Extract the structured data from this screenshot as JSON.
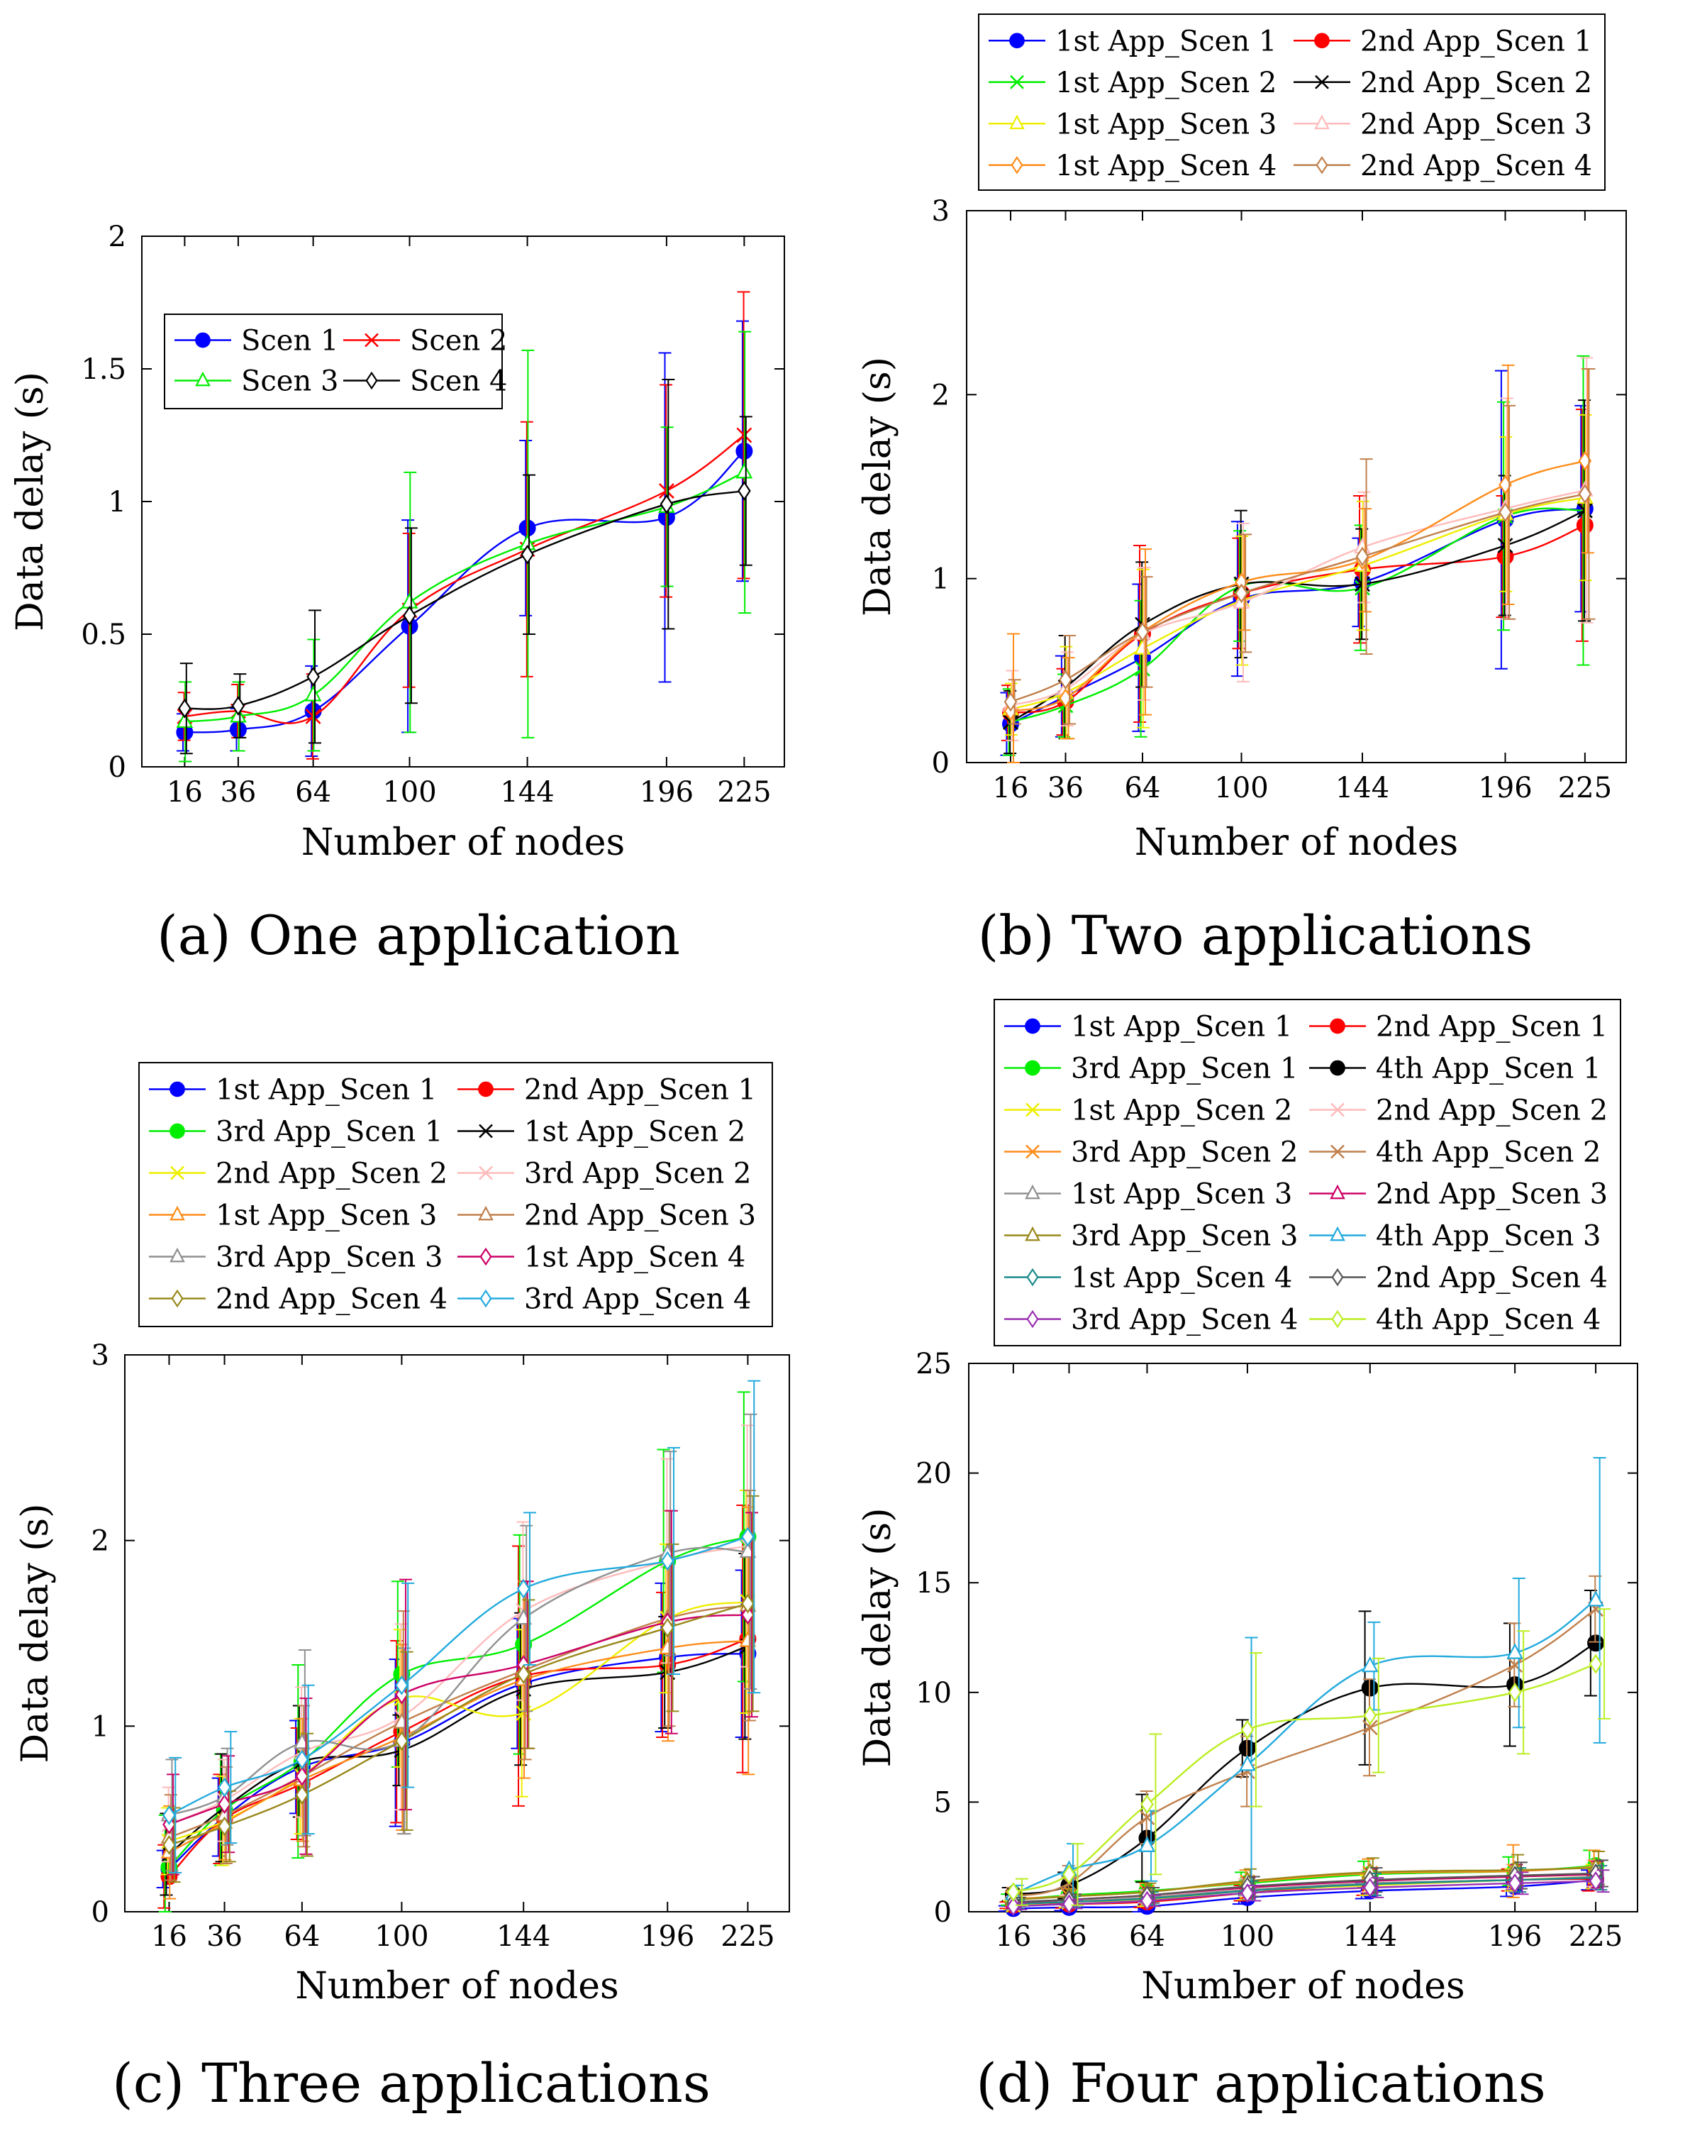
{
  "figure": {
    "captions": [
      "(a) One application",
      "(b) Two applications",
      "(c) Three applications",
      "(d) Four applications"
    ]
  },
  "chart_data": [
    {
      "type": "line",
      "title": "(a) One application",
      "xlabel": "Number of nodes",
      "ylabel": "Data delay (s)",
      "x": [
        16,
        36,
        64,
        100,
        144,
        196,
        225
      ],
      "xlim": [
        0,
        240
      ],
      "ylim": [
        0,
        2
      ],
      "yticks": [
        0,
        0.5,
        1,
        1.5,
        2
      ],
      "ytick_labels": [
        "0",
        "0.5",
        "1",
        "1.5",
        "2"
      ],
      "legend_columns": 2,
      "legend_position": "upper-left-inside",
      "series": [
        {
          "name": "Scen 1",
          "color": "#0000ff",
          "marker": "dot",
          "values": [
            0.13,
            0.14,
            0.21,
            0.53,
            0.9,
            0.94,
            1.19
          ],
          "err": [
            0.07,
            0.08,
            0.17,
            0.4,
            0.33,
            0.62,
            0.49
          ]
        },
        {
          "name": "Scen 2",
          "color": "#ff0000",
          "marker": "x",
          "values": [
            0.19,
            0.21,
            0.19,
            0.59,
            0.82,
            1.04,
            1.25
          ],
          "err": [
            0.09,
            0.1,
            0.16,
            0.29,
            0.48,
            0.4,
            0.54
          ]
        },
        {
          "name": "Scen 3",
          "color": "#00ee00",
          "marker": "triangle",
          "values": [
            0.17,
            0.19,
            0.27,
            0.62,
            0.84,
            0.98,
            1.11
          ],
          "err": [
            0.15,
            0.13,
            0.21,
            0.49,
            0.73,
            0.3,
            0.53
          ]
        },
        {
          "name": "Scen 4",
          "color": "#000000",
          "marker": "diamond",
          "values": [
            0.22,
            0.23,
            0.34,
            0.57,
            0.8,
            0.99,
            1.04
          ],
          "err": [
            0.17,
            0.12,
            0.25,
            0.33,
            0.3,
            0.47,
            0.28
          ]
        }
      ]
    },
    {
      "type": "line",
      "title": "(b) Two applications",
      "xlabel": "Number of nodes",
      "ylabel": "Data delay (s)",
      "x": [
        16,
        36,
        64,
        100,
        144,
        196,
        225
      ],
      "xlim": [
        0,
        240
      ],
      "ylim": [
        0,
        3
      ],
      "yticks": [
        0,
        1,
        2,
        3
      ],
      "ytick_labels": [
        "0",
        "1",
        "2",
        "3"
      ],
      "legend_columns": 2,
      "legend_position": "above",
      "series": [
        {
          "name": "1st App_Scen 1",
          "color": "#0000ff",
          "marker": "dot",
          "values": [
            0.21,
            0.36,
            0.57,
            0.89,
            0.98,
            1.32,
            1.38
          ],
          "err": [
            0.17,
            0.22,
            0.4,
            0.42,
            0.24,
            0.81,
            0.56
          ]
        },
        {
          "name": "2nd App_Scen 1",
          "color": "#ff0000",
          "marker": "dot",
          "values": [
            0.27,
            0.33,
            0.7,
            0.92,
            1.05,
            1.12,
            1.29
          ],
          "err": [
            0.15,
            0.18,
            0.48,
            0.3,
            0.4,
            0.33,
            0.63
          ]
        },
        {
          "name": "1st App_Scen 2",
          "color": "#00ee00",
          "marker": "x",
          "values": [
            0.22,
            0.31,
            0.51,
            0.96,
            0.95,
            1.34,
            1.37
          ],
          "err": [
            0.18,
            0.17,
            0.37,
            0.3,
            0.34,
            0.62,
            0.84
          ]
        },
        {
          "name": "2nd App_Scen 2",
          "color": "#000000",
          "marker": "x",
          "values": [
            0.22,
            0.41,
            0.75,
            0.97,
            0.97,
            1.18,
            1.37
          ],
          "err": [
            0.17,
            0.28,
            0.34,
            0.4,
            0.3,
            0.38,
            0.6
          ]
        },
        {
          "name": "1st App_Scen 3",
          "color": "#eeee00",
          "marker": "triangle",
          "values": [
            0.29,
            0.38,
            0.62,
            0.88,
            1.07,
            1.35,
            1.44
          ],
          "err": [
            0.14,
            0.25,
            0.43,
            0.35,
            0.35,
            0.42,
            0.45
          ]
        },
        {
          "name": "2nd App_Scen 3",
          "color": "#ffbbbb",
          "marker": "triangle",
          "values": [
            0.31,
            0.4,
            0.7,
            0.87,
            1.17,
            1.38,
            1.48
          ],
          "err": [
            0.19,
            0.2,
            0.36,
            0.43,
            0.3,
            0.6,
            0.72
          ]
        },
        {
          "name": "1st App_Scen 4",
          "color": "#ff8c1a",
          "marker": "diamond",
          "values": [
            0.28,
            0.35,
            0.71,
            0.98,
            1.1,
            1.51,
            1.64
          ],
          "err": [
            0.42,
            0.22,
            0.45,
            0.26,
            0.28,
            0.65,
            0.5
          ]
        },
        {
          "name": "2nd App_Scen 4",
          "color": "#c0804d",
          "marker": "diamond",
          "values": [
            0.33,
            0.45,
            0.71,
            0.92,
            1.12,
            1.36,
            1.46
          ],
          "err": [
            0.12,
            0.24,
            0.3,
            0.32,
            0.53,
            0.58,
            0.68
          ]
        }
      ]
    },
    {
      "type": "line",
      "title": "(c) Three applications",
      "xlabel": "Number of nodes",
      "ylabel": "Data delay (s)",
      "x": [
        16,
        36,
        64,
        100,
        144,
        196,
        225
      ],
      "xlim": [
        0,
        240
      ],
      "ylim": [
        0,
        3
      ],
      "yticks": [
        0,
        1,
        2,
        3
      ],
      "ytick_labels": [
        "0",
        "1",
        "2",
        "3"
      ],
      "legend_columns": 2,
      "legend_position": "above",
      "series": [
        {
          "name": "1st App_Scen 1",
          "color": "#0000ff",
          "marker": "dot",
          "values": [
            0.23,
            0.51,
            0.78,
            0.91,
            1.23,
            1.37,
            1.39
          ],
          "err": [
            0.1,
            0.21,
            0.25,
            0.45,
            0.35,
            0.4,
            0.45
          ]
        },
        {
          "name": "2nd App_Scen 1",
          "color": "#ff0000",
          "marker": "dot",
          "values": [
            0.19,
            0.5,
            0.69,
            0.97,
            1.27,
            1.33,
            1.47
          ],
          "err": [
            0.17,
            0.24,
            0.3,
            0.49,
            0.7,
            0.39,
            0.72
          ]
        },
        {
          "name": "3rd App_Scen 1",
          "color": "#00ee00",
          "marker": "dot",
          "values": [
            0.24,
            0.55,
            0.81,
            1.28,
            1.44,
            1.89,
            2.02
          ],
          "err": [
            0.28,
            0.3,
            0.52,
            0.5,
            0.59,
            0.6,
            0.78
          ]
        },
        {
          "name": "1st App_Scen 2",
          "color": "#000000",
          "marker": "x",
          "values": [
            0.31,
            0.56,
            0.81,
            0.87,
            1.2,
            1.29,
            1.43
          ],
          "err": [
            0.22,
            0.29,
            0.3,
            0.19,
            0.41,
            0.3,
            0.5
          ]
        },
        {
          "name": "2nd App_Scen 2",
          "color": "#eeee00",
          "marker": "x",
          "values": [
            0.38,
            0.49,
            0.73,
            1.15,
            1.07,
            1.58,
            1.67
          ],
          "err": [
            0.18,
            0.24,
            0.31,
            0.37,
            0.45,
            0.4,
            0.6
          ]
        },
        {
          "name": "3rd App_Scen 2",
          "color": "#ffbbbb",
          "marker": "x",
          "values": [
            0.47,
            0.6,
            0.86,
            1.05,
            1.62,
            1.89,
            1.97
          ],
          "err": [
            0.2,
            0.22,
            0.35,
            0.5,
            0.48,
            0.55,
            0.65
          ]
        },
        {
          "name": "1st App_Scen 3",
          "color": "#ff8c1a",
          "marker": "triangle",
          "values": [
            0.32,
            0.48,
            0.71,
            0.94,
            1.25,
            1.42,
            1.46
          ],
          "err": [
            0.25,
            0.2,
            0.33,
            0.5,
            0.53,
            0.5,
            0.72
          ]
        },
        {
          "name": "2nd App_Scen 3",
          "color": "#c0804d",
          "marker": "triangle",
          "values": [
            0.4,
            0.52,
            0.73,
            1.02,
            1.3,
            1.58,
            1.65
          ],
          "err": [
            0.23,
            0.26,
            0.38,
            0.6,
            0.48,
            0.58,
            0.62
          ]
        },
        {
          "name": "3rd App_Scen 3",
          "color": "#909090",
          "marker": "triangle",
          "values": [
            0.52,
            0.62,
            0.91,
            0.92,
            1.58,
            1.93,
            1.94
          ],
          "err": [
            0.3,
            0.26,
            0.5,
            0.5,
            0.5,
            0.55,
            0.74
          ]
        },
        {
          "name": "1st App_Scen 4",
          "color": "#cc0066",
          "marker": "diamond",
          "values": [
            0.47,
            0.58,
            0.73,
            1.17,
            1.33,
            1.56,
            1.6
          ],
          "err": [
            0.27,
            0.26,
            0.42,
            0.62,
            0.45,
            0.6,
            0.55
          ]
        },
        {
          "name": "2nd App_Scen 4",
          "color": "#99881a",
          "marker": "diamond",
          "values": [
            0.36,
            0.46,
            0.63,
            0.92,
            1.28,
            1.53,
            1.66
          ],
          "err": [
            0.2,
            0.19,
            0.33,
            0.48,
            0.4,
            0.45,
            0.58
          ]
        },
        {
          "name": "3rd App_Scen 4",
          "color": "#22aadd",
          "marker": "diamond",
          "values": [
            0.52,
            0.67,
            0.82,
            1.22,
            1.74,
            1.89,
            2.02
          ],
          "err": [
            0.31,
            0.3,
            0.4,
            0.55,
            0.41,
            0.61,
            0.84
          ]
        }
      ]
    },
    {
      "type": "line",
      "title": "(d) Four applications",
      "xlabel": "Number of nodes",
      "ylabel": "Data delay (s)",
      "x": [
        16,
        36,
        64,
        100,
        144,
        196,
        225
      ],
      "xlim": [
        0,
        240
      ],
      "ylim": [
        0,
        25
      ],
      "yticks": [
        0,
        5,
        10,
        15,
        20,
        25
      ],
      "ytick_labels": [
        "0",
        "5",
        "10",
        "15",
        "20",
        "25"
      ],
      "legend_columns": 2,
      "legend_position": "above",
      "series": [
        {
          "name": "1st App_Scen 1",
          "color": "#0000ff",
          "marker": "dot",
          "values": [
            0.15,
            0.2,
            0.25,
            0.65,
            0.95,
            1.15,
            1.45
          ],
          "err": [
            0.12,
            0.15,
            0.25,
            0.3,
            0.35,
            0.45,
            0.45
          ]
        },
        {
          "name": "2nd App_Scen 1",
          "color": "#ff0000",
          "marker": "dot",
          "values": [
            0.3,
            0.35,
            0.45,
            0.85,
            1.25,
            1.45,
            1.5
          ],
          "err": [
            0.15,
            0.18,
            0.25,
            0.35,
            0.5,
            0.5,
            0.55
          ]
        },
        {
          "name": "3rd App_Scen 1",
          "color": "#00ee00",
          "marker": "dot",
          "values": [
            0.55,
            0.75,
            0.95,
            1.3,
            1.7,
            1.85,
            2.1
          ],
          "err": [
            0.25,
            0.3,
            0.45,
            0.5,
            0.6,
            0.65,
            0.7
          ]
        },
        {
          "name": "4th App_Scen 1",
          "color": "#000000",
          "marker": "dot",
          "values": [
            0.8,
            1.2,
            3.35,
            7.45,
            10.2,
            10.35,
            12.25
          ],
          "err": [
            0.3,
            0.6,
            2.0,
            1.3,
            3.5,
            2.8,
            2.4
          ]
        },
        {
          "name": "1st App_Scen 2",
          "color": "#eeee00",
          "marker": "x",
          "values": [
            0.3,
            0.45,
            0.55,
            0.95,
            1.2,
            1.45,
            1.6
          ],
          "err": [
            0.2,
            0.25,
            0.3,
            0.4,
            0.45,
            0.5,
            0.55
          ]
        },
        {
          "name": "2nd App_Scen 2",
          "color": "#ffbbbb",
          "marker": "x",
          "values": [
            0.4,
            0.5,
            0.7,
            1.1,
            1.4,
            1.6,
            1.75
          ],
          "err": [
            0.2,
            0.25,
            0.3,
            0.4,
            0.5,
            0.55,
            0.6
          ]
        },
        {
          "name": "3rd App_Scen 2",
          "color": "#ff8c1a",
          "marker": "x",
          "values": [
            0.6,
            0.7,
            0.9,
            1.35,
            1.75,
            1.85,
            2.05
          ],
          "err": [
            0.3,
            0.35,
            0.4,
            0.55,
            0.65,
            1.2,
            0.75
          ]
        },
        {
          "name": "4th App_Scen 2",
          "color": "#c0804d",
          "marker": "x",
          "values": [
            0.7,
            1.3,
            4.3,
            6.4,
            8.4,
            11.25,
            13.8
          ],
          "err": [
            0.4,
            0.8,
            1.2,
            1.6,
            2.2,
            1.9,
            1.5
          ]
        },
        {
          "name": "1st App_Scen 3",
          "color": "#909090",
          "marker": "triangle",
          "values": [
            0.35,
            0.45,
            0.65,
            1.0,
            1.3,
            1.45,
            1.6
          ],
          "err": [
            0.2,
            0.25,
            0.35,
            0.45,
            0.5,
            0.55,
            0.55
          ]
        },
        {
          "name": "2nd App_Scen 3",
          "color": "#cc0066",
          "marker": "triangle",
          "values": [
            0.4,
            0.55,
            0.75,
            1.1,
            1.4,
            1.6,
            1.7
          ],
          "err": [
            0.2,
            0.25,
            0.35,
            0.45,
            0.55,
            0.55,
            0.6
          ]
        },
        {
          "name": "3rd App_Scen 3",
          "color": "#99881a",
          "marker": "triangle",
          "values": [
            0.55,
            0.7,
            0.9,
            1.4,
            1.8,
            1.9,
            2.0
          ],
          "err": [
            0.25,
            0.3,
            0.4,
            0.55,
            0.65,
            0.7,
            0.75
          ]
        },
        {
          "name": "4th App_Scen 3",
          "color": "#22aadd",
          "marker": "triangle",
          "values": [
            0.8,
            1.9,
            3.0,
            6.7,
            11.2,
            11.8,
            14.2
          ],
          "err": [
            0.4,
            1.2,
            1.6,
            5.8,
            2.0,
            3.4,
            6.5
          ]
        },
        {
          "name": "1st App_Scen 4",
          "color": "#1a8a8a",
          "marker": "diamond",
          "values": [
            0.35,
            0.45,
            0.6,
            0.95,
            1.25,
            1.45,
            1.55
          ],
          "err": [
            0.2,
            0.25,
            0.3,
            0.45,
            0.5,
            0.55,
            0.55
          ]
        },
        {
          "name": "2nd App_Scen 4",
          "color": "#555555",
          "marker": "diamond",
          "values": [
            0.45,
            0.55,
            0.75,
            1.15,
            1.45,
            1.65,
            1.75
          ],
          "err": [
            0.2,
            0.25,
            0.35,
            0.45,
            0.55,
            0.6,
            0.6
          ]
        },
        {
          "name": "3rd App_Scen 4",
          "color": "#9a2fb0",
          "marker": "diamond",
          "values": [
            0.25,
            0.35,
            0.5,
            0.85,
            1.1,
            1.3,
            1.4
          ],
          "err": [
            0.15,
            0.2,
            0.25,
            0.35,
            0.45,
            0.5,
            0.5
          ]
        },
        {
          "name": "4th App_Scen 4",
          "color": "#bbee22",
          "marker": "diamond",
          "values": [
            0.9,
            1.7,
            4.9,
            8.3,
            8.95,
            10.0,
            11.3
          ],
          "err": [
            0.6,
            1.4,
            3.2,
            3.5,
            2.6,
            2.8,
            2.5
          ]
        }
      ]
    }
  ]
}
